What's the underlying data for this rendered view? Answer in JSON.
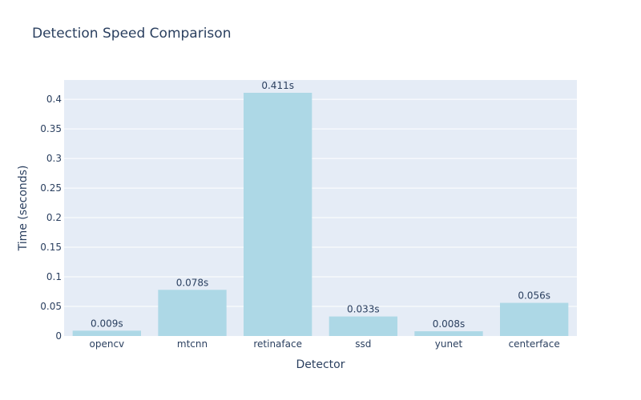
{
  "chart_data": {
    "type": "bar",
    "title": "Detection Speed Comparison",
    "xlabel": "Detector",
    "ylabel": "Time (seconds)",
    "categories": [
      "opencv",
      "mtcnn",
      "retinaface",
      "ssd",
      "yunet",
      "centerface"
    ],
    "values": [
      0.009,
      0.078,
      0.411,
      0.033,
      0.008,
      0.056
    ],
    "data_labels": [
      "0.009s",
      "0.078s",
      "0.411s",
      "0.033s",
      "0.008s",
      "0.056s"
    ],
    "ylim": [
      0,
      0.4326
    ],
    "yticks": [
      0,
      0.05,
      0.1,
      0.15,
      0.2,
      0.25,
      0.3,
      0.35,
      0.4
    ],
    "ytick_labels": [
      "0",
      "0.05",
      "0.1",
      "0.15",
      "0.2",
      "0.25",
      "0.3",
      "0.35",
      "0.4"
    ],
    "grid": true,
    "legend": "none",
    "colors": {
      "bar": "#add8e6",
      "plot_background": "#e5ecf6",
      "grid": "#ffffff",
      "text": "#2a3f5f"
    }
  }
}
